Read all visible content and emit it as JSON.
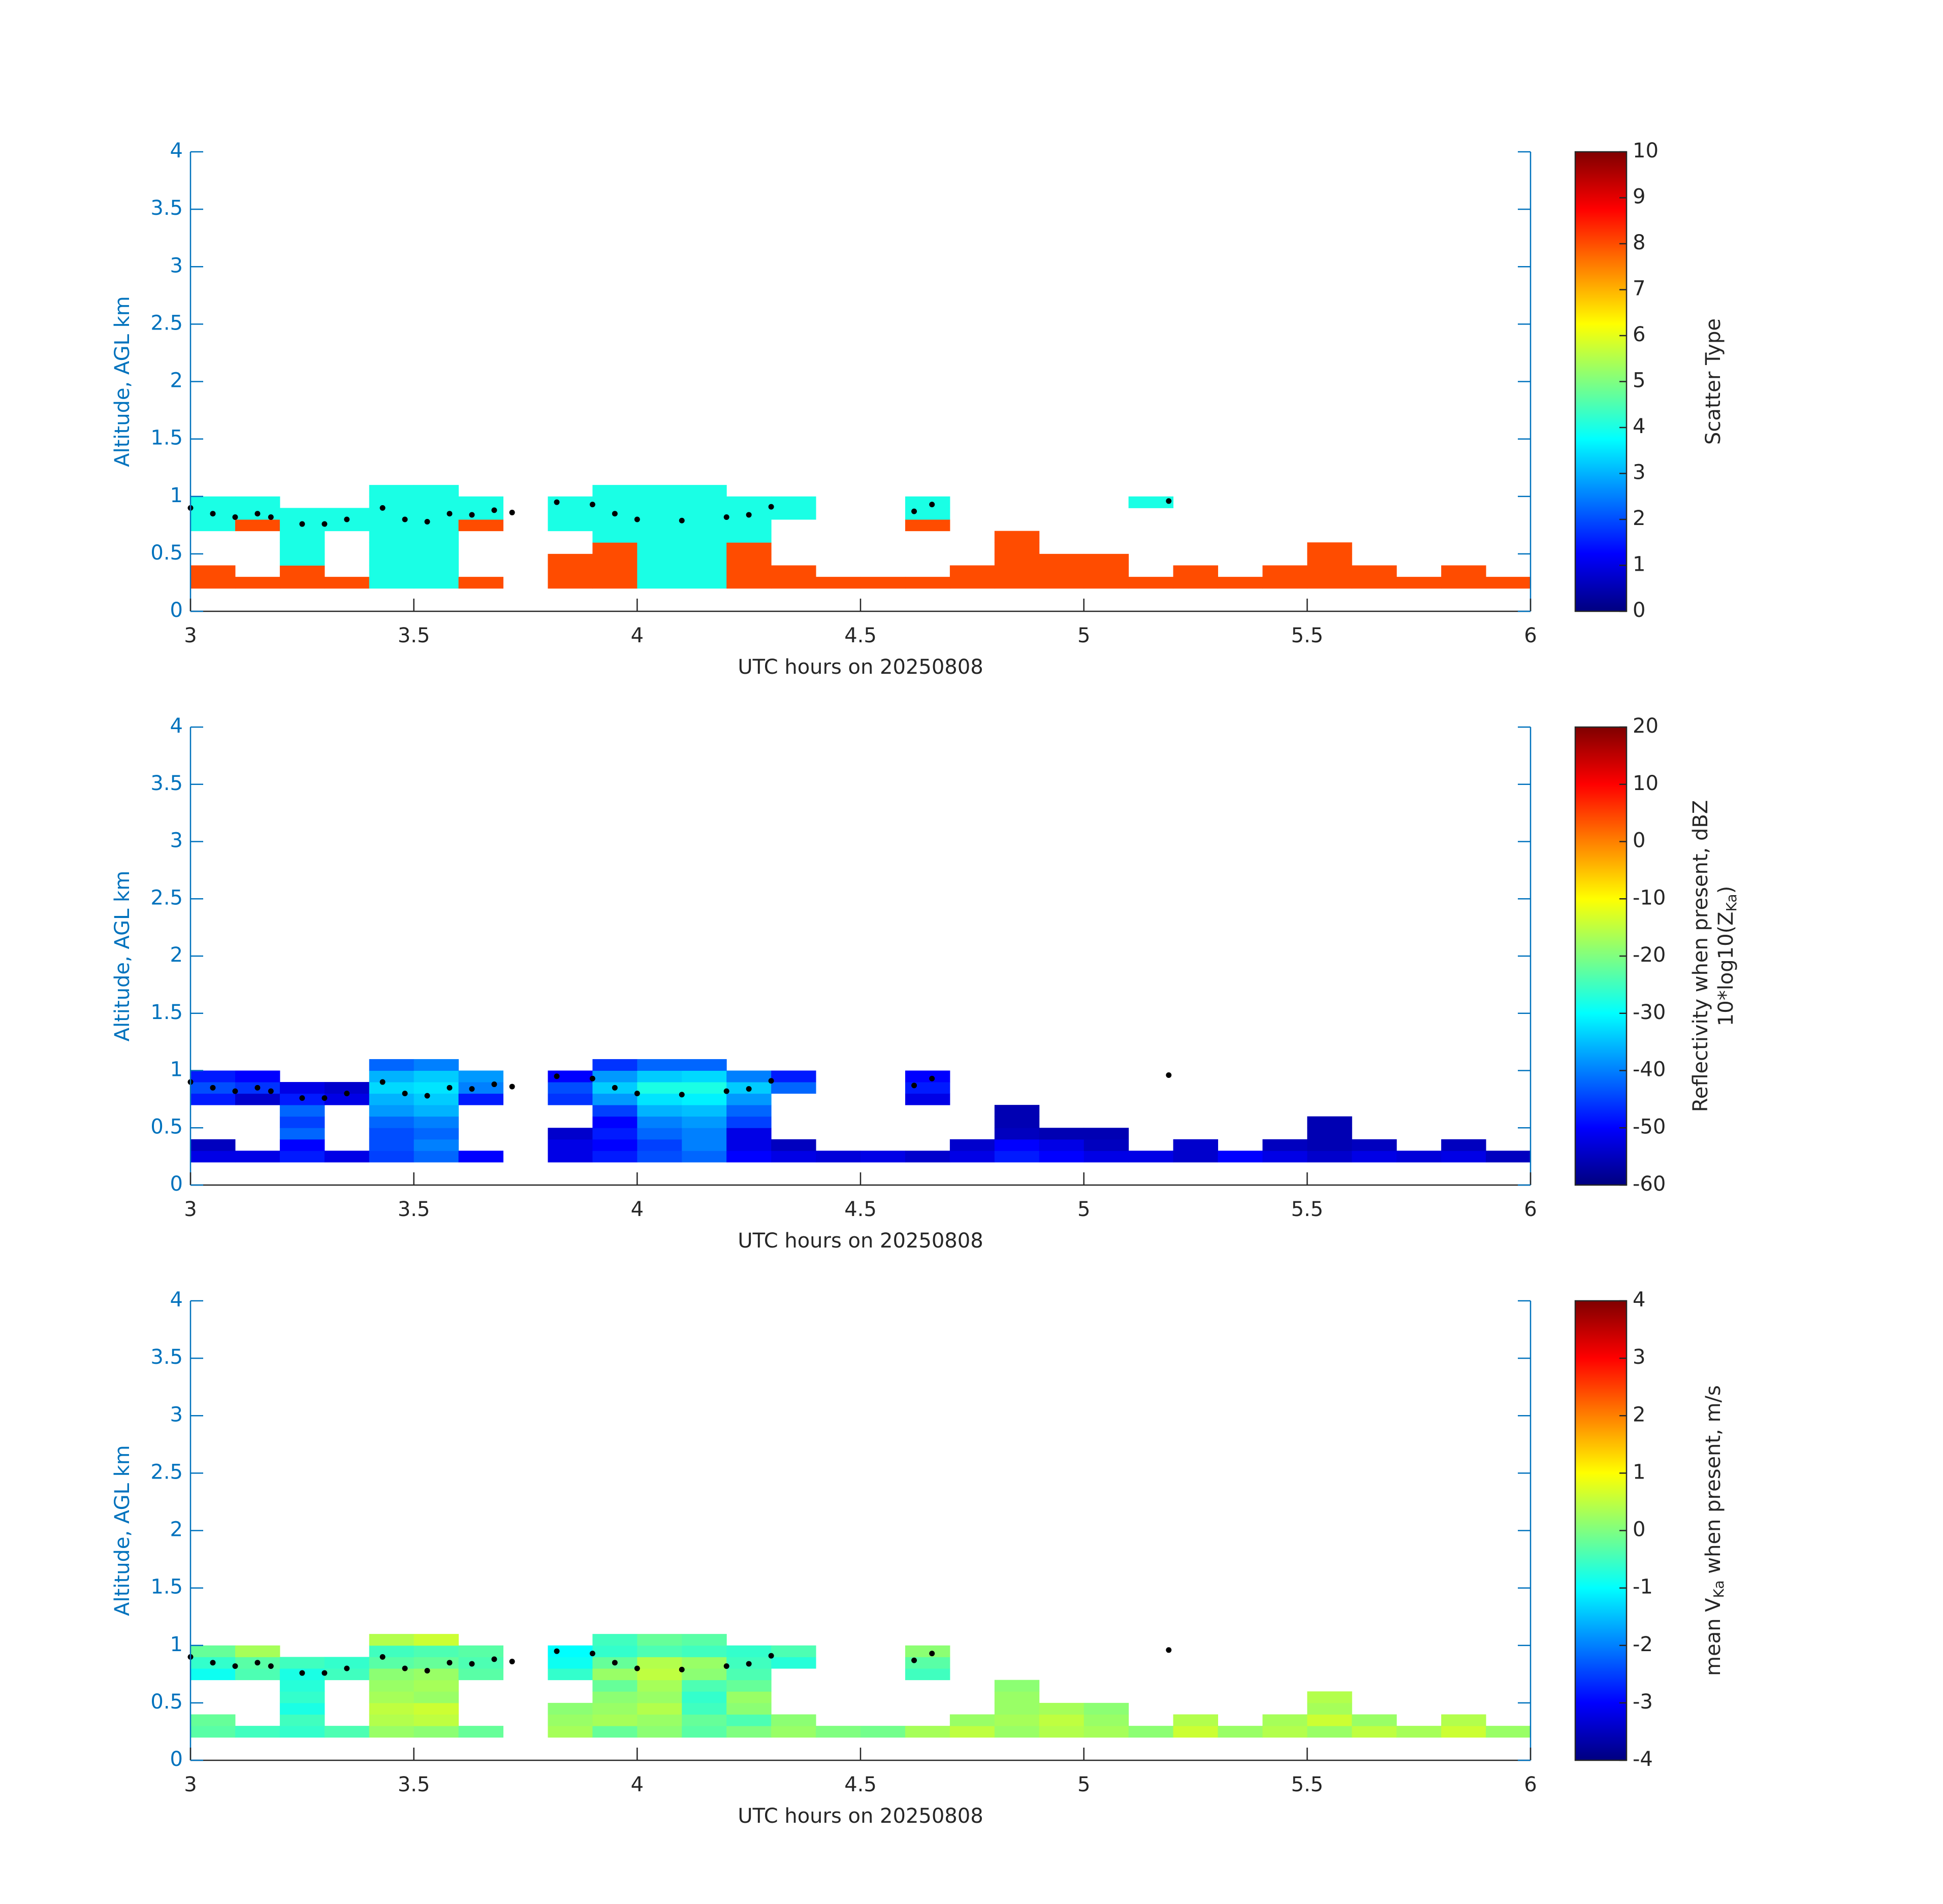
{
  "chart_data": [
    {
      "type": "heatmap",
      "xlabel": "UTC hours on 20250808",
      "ylabel": "Altitude, AGL km",
      "xlim": [
        3,
        6
      ],
      "xticks": [
        3,
        3.5,
        4,
        4.5,
        5,
        5.5,
        6
      ],
      "ylim": [
        0,
        4
      ],
      "yticks": [
        0,
        0.5,
        1,
        1.5,
        2,
        2.5,
        3,
        3.5,
        4
      ],
      "xbins": [
        3,
        3.1,
        3.2,
        3.3,
        3.4,
        3.5,
        3.6,
        3.7,
        3.8,
        3.9,
        4,
        4.1,
        4.2,
        4.3,
        4.4,
        4.5,
        4.6,
        4.7,
        4.8,
        4.9,
        5,
        5.1,
        5.2,
        5.3,
        5.4,
        5.5,
        5.6,
        5.7,
        5.8,
        5.9,
        6
      ],
      "ybins": [
        0.2,
        0.3,
        0.4,
        0.5,
        0.6,
        0.7,
        0.8,
        0.9,
        1.0,
        1.1
      ],
      "z": [
        [
          8,
          8,
          8,
          8,
          4,
          4,
          8,
          null,
          8,
          8,
          4,
          4,
          8,
          8,
          8,
          8,
          8,
          8,
          8,
          8,
          8,
          8,
          8,
          8,
          8,
          8,
          8,
          8,
          8,
          8
        ],
        [
          8,
          null,
          8,
          null,
          4,
          4,
          null,
          null,
          8,
          8,
          4,
          4,
          8,
          8,
          null,
          null,
          null,
          8,
          8,
          8,
          8,
          null,
          8,
          null,
          8,
          8,
          8,
          null,
          8,
          null
        ],
        [
          null,
          null,
          4,
          null,
          4,
          4,
          null,
          null,
          8,
          8,
          4,
          4,
          8,
          null,
          null,
          null,
          null,
          null,
          8,
          8,
          8,
          null,
          null,
          null,
          null,
          8,
          null,
          null,
          null,
          null
        ],
        [
          null,
          null,
          4,
          null,
          4,
          4,
          null,
          null,
          null,
          8,
          4,
          4,
          8,
          null,
          null,
          null,
          null,
          null,
          8,
          null,
          null,
          null,
          null,
          null,
          null,
          8,
          null,
          null,
          null,
          null
        ],
        [
          null,
          null,
          4,
          null,
          4,
          4,
          null,
          null,
          null,
          4,
          4,
          4,
          4,
          null,
          null,
          null,
          null,
          null,
          8,
          null,
          null,
          null,
          null,
          null,
          null,
          null,
          null,
          null,
          null,
          null
        ],
        [
          4,
          8,
          4,
          4,
          4,
          4,
          8,
          null,
          4,
          4,
          4,
          4,
          4,
          null,
          null,
          null,
          8,
          null,
          null,
          null,
          null,
          null,
          null,
          null,
          null,
          null,
          null,
          null,
          null,
          null
        ],
        [
          4,
          4,
          4,
          4,
          4,
          4,
          4,
          null,
          4,
          4,
          4,
          4,
          4,
          4,
          null,
          null,
          4,
          null,
          null,
          null,
          null,
          null,
          null,
          null,
          null,
          null,
          null,
          null,
          null,
          null
        ],
        [
          4,
          4,
          null,
          null,
          4,
          4,
          4,
          null,
          4,
          4,
          4,
          4,
          4,
          4,
          null,
          null,
          4,
          null,
          null,
          null,
          null,
          4,
          null,
          null,
          null,
          null,
          null,
          null,
          null,
          null
        ],
        [
          null,
          null,
          null,
          null,
          4,
          4,
          null,
          null,
          null,
          4,
          4,
          4,
          null,
          null,
          null,
          null,
          null,
          null,
          null,
          null,
          null,
          null,
          null,
          null,
          null,
          null,
          null,
          null,
          null,
          null
        ]
      ],
      "colorbar": {
        "label": [
          "Scatter Type"
        ],
        "clim": [
          0,
          10
        ],
        "ticks": [
          0,
          1,
          2,
          3,
          4,
          5,
          6,
          7,
          8,
          9,
          10
        ],
        "colormap": "jet"
      },
      "cloud_base": {
        "color": "#000000",
        "x": [
          3.0,
          3.05,
          3.1,
          3.15,
          3.18,
          3.25,
          3.3,
          3.35,
          3.43,
          3.48,
          3.53,
          3.58,
          3.63,
          3.68,
          3.72,
          3.82,
          3.9,
          3.95,
          4.0,
          4.1,
          4.2,
          4.25,
          4.3,
          4.62,
          4.66,
          5.19
        ],
        "y": [
          0.9,
          0.85,
          0.82,
          0.85,
          0.82,
          0.76,
          0.76,
          0.8,
          0.9,
          0.8,
          0.78,
          0.85,
          0.84,
          0.88,
          0.86,
          0.95,
          0.93,
          0.85,
          0.8,
          0.79,
          0.82,
          0.84,
          0.91,
          0.87,
          0.93,
          0.96
        ]
      }
    },
    {
      "type": "heatmap",
      "xlabel": "UTC hours on 20250808",
      "ylabel": "Altitude, AGL km",
      "xlim": [
        3,
        6
      ],
      "xticks": [
        3,
        3.5,
        4,
        4.5,
        5,
        5.5,
        6
      ],
      "ylim": [
        0,
        4
      ],
      "yticks": [
        0,
        0.5,
        1,
        1.5,
        2,
        2.5,
        3,
        3.5,
        4
      ],
      "xbins": [
        3,
        3.1,
        3.2,
        3.3,
        3.4,
        3.5,
        3.6,
        3.7,
        3.8,
        3.9,
        4,
        4.1,
        4.2,
        4.3,
        4.4,
        4.5,
        4.6,
        4.7,
        4.8,
        4.9,
        5,
        5.1,
        5.2,
        5.3,
        5.4,
        5.5,
        5.6,
        5.7,
        5.8,
        5.9,
        6
      ],
      "ybins": [
        0.2,
        0.3,
        0.4,
        0.5,
        0.6,
        0.7,
        0.8,
        0.9,
        1.0,
        1.1
      ],
      "z": [
        [
          -52,
          -52,
          -48,
          -52,
          -45,
          -42,
          -50,
          null,
          -52,
          -48,
          -44,
          -42,
          -50,
          -52,
          -53,
          -52,
          -54,
          -52,
          -48,
          -50,
          -52,
          -52,
          -54,
          -50,
          -52,
          -54,
          -52,
          -53,
          -52,
          -55
        ],
        [
          -55,
          null,
          -50,
          null,
          -44,
          -40,
          null,
          null,
          -52,
          -50,
          -45,
          -40,
          -52,
          -55,
          null,
          null,
          null,
          -54,
          -50,
          -52,
          -55,
          null,
          -54,
          null,
          -55,
          -56,
          -55,
          null,
          -55,
          null
        ],
        [
          null,
          null,
          -42,
          null,
          -44,
          -42,
          null,
          null,
          -54,
          -48,
          -42,
          -40,
          -52,
          null,
          null,
          null,
          null,
          null,
          -55,
          -56,
          -56,
          null,
          null,
          null,
          null,
          -56,
          null,
          null,
          null,
          null
        ],
        [
          null,
          null,
          -45,
          null,
          -42,
          -40,
          null,
          null,
          null,
          -50,
          -40,
          -38,
          -45,
          null,
          null,
          null,
          null,
          null,
          -56,
          null,
          null,
          null,
          null,
          null,
          null,
          -56,
          null,
          null,
          null,
          null
        ],
        [
          null,
          null,
          -42,
          null,
          -38,
          -36,
          null,
          null,
          null,
          -45,
          -36,
          -35,
          -42,
          null,
          null,
          null,
          null,
          null,
          -56,
          null,
          null,
          null,
          null,
          null,
          null,
          null,
          null,
          null,
          null,
          null
        ],
        [
          -48,
          -54,
          -48,
          -52,
          -36,
          -34,
          -48,
          null,
          -46,
          -38,
          -32,
          -31,
          -38,
          null,
          null,
          null,
          -52,
          null,
          null,
          null,
          null,
          null,
          null,
          null,
          null,
          null,
          null,
          null,
          null,
          null
        ],
        [
          -44,
          -46,
          -52,
          -54,
          -33,
          -32,
          -40,
          null,
          -44,
          -34,
          -28,
          -28,
          -34,
          -42,
          null,
          null,
          -48,
          null,
          null,
          null,
          null,
          null,
          null,
          null,
          null,
          null,
          null,
          null,
          null,
          null
        ],
        [
          -48,
          -50,
          null,
          null,
          -36,
          -34,
          -38,
          null,
          -50,
          -38,
          -34,
          -33,
          -40,
          -48,
          null,
          null,
          -50,
          null,
          null,
          null,
          null,
          null,
          null,
          null,
          null,
          null,
          null,
          null,
          null,
          null
        ],
        [
          null,
          null,
          null,
          null,
          -42,
          -40,
          null,
          null,
          null,
          -46,
          -42,
          -42,
          null,
          null,
          null,
          null,
          null,
          null,
          null,
          null,
          null,
          null,
          null,
          null,
          null,
          null,
          null,
          null,
          null,
          null
        ]
      ],
      "colorbar": {
        "label": [
          "Reflectivity when present, dBZ",
          "10*log10(Z",
          "Ka",
          ")"
        ],
        "clim": [
          -60,
          20
        ],
        "ticks": [
          -60,
          -50,
          -40,
          -30,
          -20,
          -10,
          0,
          10,
          20
        ],
        "colormap": "jet"
      },
      "cloud_base": {
        "color": "#000000",
        "x": [
          3.0,
          3.05,
          3.1,
          3.15,
          3.18,
          3.25,
          3.3,
          3.35,
          3.43,
          3.48,
          3.53,
          3.58,
          3.63,
          3.68,
          3.72,
          3.82,
          3.9,
          3.95,
          4.0,
          4.1,
          4.2,
          4.25,
          4.3,
          4.62,
          4.66,
          5.19
        ],
        "y": [
          0.9,
          0.85,
          0.82,
          0.85,
          0.82,
          0.76,
          0.76,
          0.8,
          0.9,
          0.8,
          0.78,
          0.85,
          0.84,
          0.88,
          0.86,
          0.95,
          0.93,
          0.85,
          0.8,
          0.79,
          0.82,
          0.84,
          0.91,
          0.87,
          0.93,
          0.96
        ]
      }
    },
    {
      "type": "heatmap",
      "xlabel": "UTC hours on 20250808",
      "ylabel": "Altitude, AGL km",
      "xlim": [
        3,
        6
      ],
      "xticks": [
        3,
        3.5,
        4,
        4.5,
        5,
        5.5,
        6
      ],
      "ylim": [
        0,
        4
      ],
      "yticks": [
        0,
        0.5,
        1,
        1.5,
        2,
        2.5,
        3,
        3.5,
        4
      ],
      "xbins": [
        3,
        3.1,
        3.2,
        3.3,
        3.4,
        3.5,
        3.6,
        3.7,
        3.8,
        3.9,
        4,
        4.1,
        4.2,
        4.3,
        4.4,
        4.5,
        4.6,
        4.7,
        4.8,
        4.9,
        5,
        5.1,
        5.2,
        5.3,
        5.4,
        5.5,
        5.6,
        5.7,
        5.8,
        5.9,
        6
      ],
      "ybins": [
        0.2,
        0.3,
        0.4,
        0.5,
        0.6,
        0.7,
        0.8,
        0.9,
        1.0,
        1.1
      ],
      "z": [
        [
          -0.3,
          -0.5,
          -0.6,
          -0.4,
          0.2,
          0.1,
          -0.2,
          null,
          0.3,
          -0.2,
          0.1,
          -0.3,
          0,
          0.2,
          0,
          -0.1,
          0.3,
          0.5,
          0.2,
          0.4,
          0.3,
          0.1,
          0.6,
          0.2,
          0.4,
          0.2,
          0.5,
          0.3,
          0.6,
          0.2
        ],
        [
          -0.2,
          null,
          -0.5,
          null,
          0.4,
          0.5,
          null,
          null,
          0.2,
          0.3,
          0.2,
          -0.2,
          -0.4,
          0.1,
          null,
          null,
          null,
          0.2,
          0.3,
          0.5,
          0.2,
          null,
          0.4,
          null,
          0.3,
          0.6,
          0.2,
          null,
          0.4,
          null
        ],
        [
          null,
          null,
          -0.8,
          null,
          0.5,
          0.6,
          null,
          null,
          0.1,
          0.2,
          0.4,
          -0.5,
          0.1,
          null,
          null,
          null,
          null,
          null,
          0.2,
          0.3,
          0.1,
          null,
          null,
          null,
          null,
          0.3,
          null,
          null,
          null,
          null
        ],
        [
          null,
          null,
          -0.6,
          null,
          0.3,
          0.2,
          null,
          null,
          null,
          0.1,
          0.2,
          -0.6,
          0.2,
          null,
          null,
          null,
          null,
          null,
          0.2,
          null,
          null,
          null,
          null,
          null,
          null,
          0.4,
          null,
          null,
          null,
          null
        ],
        [
          null,
          null,
          -0.7,
          null,
          0.2,
          0.3,
          null,
          null,
          null,
          -0.2,
          0.3,
          -0.4,
          -0.2,
          null,
          null,
          null,
          null,
          null,
          0.1,
          null,
          null,
          null,
          null,
          null,
          null,
          null,
          null,
          null,
          null,
          null
        ],
        [
          -0.9,
          -0.4,
          -0.8,
          -0.5,
          0.1,
          0.2,
          -0.3,
          null,
          -0.6,
          0.2,
          0.5,
          0.1,
          -0.4,
          null,
          null,
          null,
          -0.5,
          null,
          null,
          null,
          null,
          null,
          null,
          null,
          null,
          null,
          null,
          null,
          null,
          null
        ],
        [
          -0.6,
          -0.3,
          -0.5,
          -0.6,
          -0.3,
          -0.2,
          -0.4,
          null,
          -0.9,
          -0.2,
          0.4,
          0.2,
          -0.5,
          -0.7,
          null,
          null,
          -0.3,
          null,
          null,
          null,
          null,
          null,
          null,
          null,
          null,
          null,
          null,
          null,
          null,
          null
        ],
        [
          -0.2,
          0.3,
          null,
          null,
          -0.5,
          -0.4,
          -0.3,
          null,
          -1.0,
          -0.6,
          -0.4,
          -0.5,
          -0.6,
          -0.4,
          null,
          null,
          0.1,
          null,
          null,
          null,
          null,
          null,
          null,
          null,
          null,
          null,
          null,
          null,
          null,
          null
        ],
        [
          null,
          null,
          null,
          null,
          0.4,
          0.6,
          null,
          null,
          null,
          -0.5,
          -0.2,
          -0.3,
          null,
          null,
          null,
          null,
          null,
          null,
          null,
          null,
          null,
          null,
          null,
          null,
          null,
          null,
          null,
          null,
          null,
          null
        ]
      ],
      "colorbar": {
        "label": [
          "mean V",
          "Ka",
          " when present, m/s"
        ],
        "clim": [
          -4,
          4
        ],
        "ticks": [
          -4,
          -3,
          -2,
          -1,
          0,
          1,
          2,
          3,
          4
        ],
        "colormap": "jet"
      },
      "cloud_base": {
        "color": "#000000",
        "x": [
          3.0,
          3.05,
          3.1,
          3.15,
          3.18,
          3.25,
          3.3,
          3.35,
          3.43,
          3.48,
          3.53,
          3.58,
          3.63,
          3.68,
          3.72,
          3.82,
          3.9,
          3.95,
          4.0,
          4.1,
          4.2,
          4.25,
          4.3,
          4.62,
          4.66,
          5.19
        ],
        "y": [
          0.9,
          0.85,
          0.82,
          0.85,
          0.82,
          0.76,
          0.76,
          0.8,
          0.9,
          0.8,
          0.78,
          0.85,
          0.84,
          0.88,
          0.86,
          0.95,
          0.93,
          0.85,
          0.8,
          0.79,
          0.82,
          0.84,
          0.91,
          0.87,
          0.93,
          0.96
        ]
      }
    }
  ]
}
